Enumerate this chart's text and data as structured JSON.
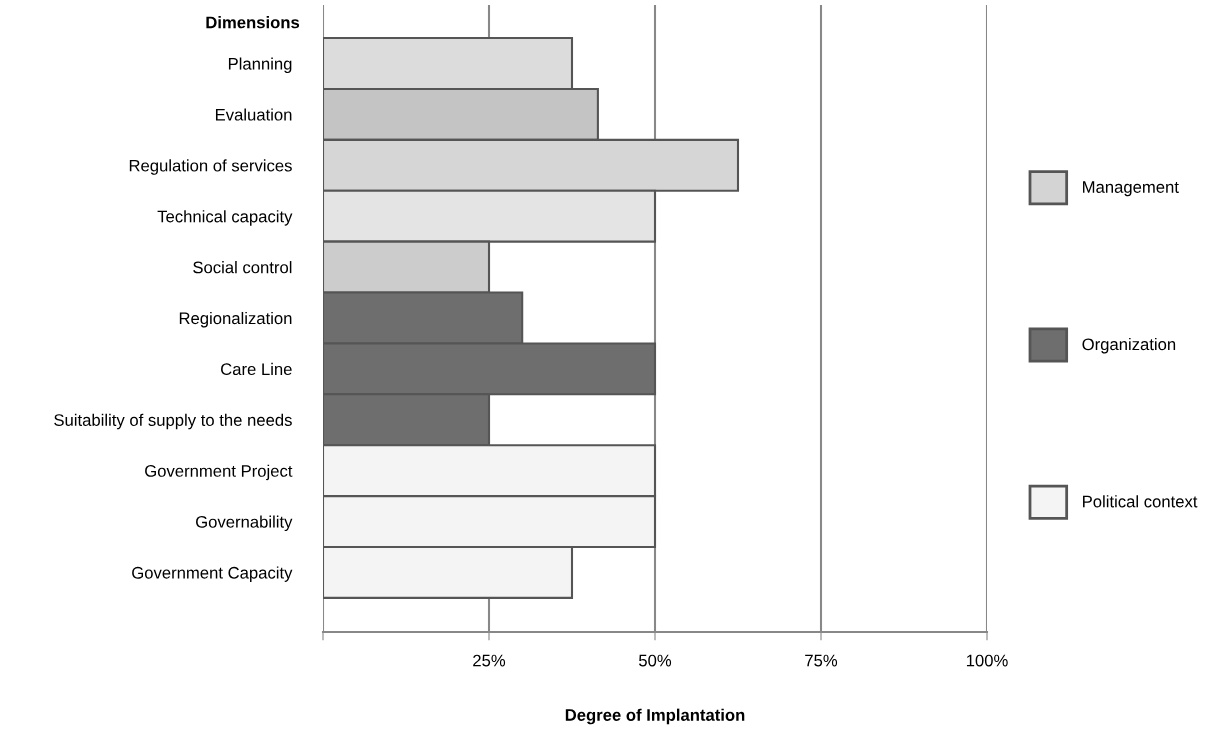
{
  "chart_data": {
    "type": "bar",
    "orientation": "horizontal",
    "ylabel": "Dimensions",
    "xlabel": "Degree of Implantation",
    "categories": [
      "Planning",
      "Evaluation",
      "Regulation of services",
      "Technical capacity",
      "Social control",
      "Regionalization",
      "Care Line",
      "Suitability of supply to the needs",
      "Government Project",
      "Governability",
      "Government Capacity"
    ],
    "series": [
      {
        "name": "Management",
        "color": "#d4d4d4",
        "colors": [
          "#dcdcdc",
          "#c4c4c4",
          "#d6d6d6",
          "#e4e4e4",
          "#cccccc",
          null,
          null,
          null,
          null,
          null,
          null
        ],
        "values": [
          37.5,
          41.4,
          62.5,
          50,
          25,
          null,
          null,
          null,
          null,
          null,
          null
        ]
      },
      {
        "name": "Organization",
        "color": "#6e6e6e",
        "values": [
          null,
          null,
          null,
          null,
          null,
          30,
          50,
          25,
          null,
          null,
          null
        ]
      },
      {
        "name": "Political context",
        "color": "#f4f4f4",
        "values": [
          null,
          null,
          null,
          null,
          null,
          null,
          null,
          null,
          50,
          50,
          37.5
        ]
      }
    ],
    "xlim": [
      0,
      100
    ],
    "xticks": [
      {
        "value": 0,
        "label": null
      },
      {
        "value": 25,
        "label": "25%"
      },
      {
        "value": 50,
        "label": "50%"
      },
      {
        "value": 75,
        "label": "75%"
      },
      {
        "value": 100,
        "label": "100%"
      }
    ],
    "grid": "x",
    "legend": "right"
  }
}
